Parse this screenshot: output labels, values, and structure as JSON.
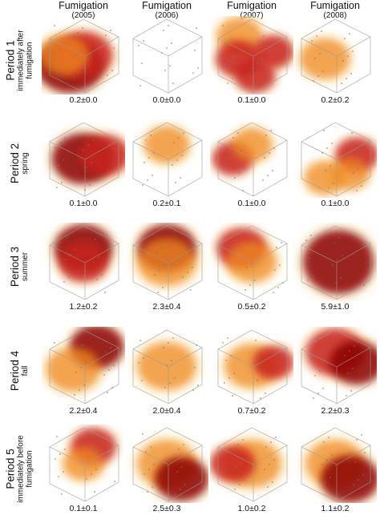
{
  "columns": [
    {
      "title": "Fumigation",
      "year": "(2005)"
    },
    {
      "title": "Fumigation",
      "year": "(2006)"
    },
    {
      "title": "Fumigation",
      "year": "(2007)"
    },
    {
      "title": "Fumigation",
      "year": "(2008)"
    }
  ],
  "rows": [
    {
      "period": "Period 1",
      "subtitle_lines": [
        "immediately after",
        "fumigation"
      ],
      "values": [
        "0.2±0.0",
        "0.0±0.0",
        "0.1±0.0",
        "0.2±0.2"
      ]
    },
    {
      "period": "Period 2",
      "subtitle_lines": [
        "spring"
      ],
      "values": [
        "0.1±0.0",
        "0.2±0.1",
        "0.1±0.0",
        "0.1±0.0"
      ]
    },
    {
      "period": "Period 3",
      "subtitle_lines": [
        "summer"
      ],
      "values": [
        "1.2±0.2",
        "2.3±0.4",
        "0.5±0.2",
        "5.9±1.0"
      ]
    },
    {
      "period": "Period 4",
      "subtitle_lines": [
        "fall"
      ],
      "values": [
        "2.2±0.4",
        "2.0±0.4",
        "0.7±0.2",
        "2.2±0.3"
      ]
    },
    {
      "period": "Period 5",
      "subtitle_lines": [
        "immediately before",
        "fumigation"
      ],
      "values": [
        "0.1±0.1",
        "2.5±0.3",
        "1.0±0.2",
        "1.1±0.2"
      ]
    }
  ],
  "colors": {
    "dark_red": "#8b0000",
    "red": "#c8221a",
    "orange": "#f08a24",
    "light": "#fde7b6",
    "grid_line": "#9a9a9a"
  },
  "density": [
    [
      [
        [
          "lower-left",
          "dark",
          1.0
        ],
        [
          "center",
          "red",
          0.8
        ],
        [
          "left",
          "orange",
          0.6
        ]
      ],
      [],
      [
        [
          "top-left",
          "orange",
          0.5
        ],
        [
          "mid-left",
          "red",
          0.5
        ],
        [
          "right",
          "red",
          0.4
        ],
        [
          "bottom",
          "red",
          0.4
        ]
      ],
      [
        [
          "center-left",
          "orange",
          0.6
        ]
      ]
    ],
    [
      [
        [
          "center",
          "dark",
          0.9
        ],
        [
          "right",
          "red",
          0.6
        ]
      ],
      [
        [
          "upper-center",
          "orange",
          0.5
        ]
      ],
      [
        [
          "left",
          "red",
          0.4
        ],
        [
          "upper-center",
          "orange",
          0.4
        ]
      ],
      [
        [
          "right",
          "red",
          0.45
        ],
        [
          "bottom-left",
          "orange",
          0.4
        ],
        [
          "bottom-right",
          "orange",
          0.35
        ]
      ]
    ],
    [
      [
        [
          "upper-center",
          "dark",
          0.8
        ],
        [
          "center",
          "red",
          0.6
        ]
      ],
      [
        [
          "upper-center",
          "dark",
          0.8
        ],
        [
          "center",
          "orange",
          0.8
        ]
      ],
      [
        [
          "upper-left",
          "red",
          0.6
        ],
        [
          "center",
          "orange",
          0.6
        ]
      ],
      [
        [
          "full",
          "dark",
          1.0
        ]
      ]
    ],
    [
      [
        [
          "top-right",
          "dark",
          0.7
        ],
        [
          "center-left",
          "orange",
          0.7
        ]
      ],
      [
        [
          "center",
          "orange",
          0.8
        ]
      ],
      [
        [
          "center",
          "orange",
          0.7
        ],
        [
          "right",
          "red",
          0.4
        ]
      ],
      [
        [
          "upper-center",
          "red",
          0.8
        ],
        [
          "right",
          "dark",
          0.7
        ]
      ]
    ],
    [
      [
        [
          "upper-right",
          "red",
          0.5
        ],
        [
          "center",
          "orange",
          0.4
        ]
      ],
      [
        [
          "center",
          "orange",
          0.8
        ],
        [
          "bottom-right",
          "dark",
          0.7
        ]
      ],
      [
        [
          "center",
          "orange",
          0.8
        ],
        [
          "left",
          "red",
          0.5
        ]
      ],
      [
        [
          "center",
          "orange",
          0.8
        ],
        [
          "bottom-right",
          "dark",
          0.8
        ]
      ]
    ]
  ]
}
